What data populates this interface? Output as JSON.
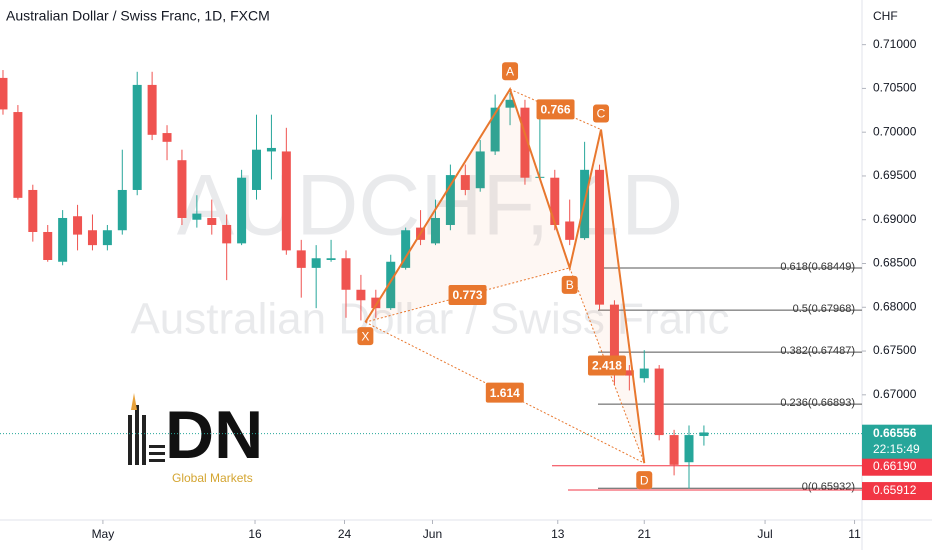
{
  "chart_data": {
    "type": "candlestick",
    "title": "Australian Dollar / Swiss Franc, 1D, FXCM",
    "watermark": "AUDCHF, 1D",
    "watermark_subtitle": "Australian Dollar / Swiss Franc",
    "y_axis_unit": "CHF",
    "up_color": "#26a69a",
    "down_color": "#ef5350",
    "categories": [
      null,
      null,
      null,
      null,
      null,
      null,
      null,
      null,
      null,
      null,
      null,
      null,
      null,
      null,
      null,
      null,
      null,
      null,
      null,
      null,
      null,
      null,
      null,
      null,
      null,
      null,
      null,
      null,
      null,
      null,
      null,
      null,
      null,
      null,
      null,
      null,
      null,
      null,
      null,
      null,
      null,
      null,
      null,
      null,
      null,
      null,
      null,
      null
    ],
    "open": [
      0.7062,
      0.7023,
      0.6934,
      0.6886,
      0.6852,
      0.6904,
      0.6888,
      0.6871,
      0.6888,
      0.6934,
      0.7054,
      0.6999,
      0.6968,
      0.69,
      0.6902,
      0.6894,
      0.6873,
      0.6934,
      0.6978,
      0.6978,
      0.6865,
      0.6845,
      0.6854,
      0.6856,
      0.682,
      0.6811,
      0.6799,
      0.6845,
      0.6891,
      0.6873,
      0.6894,
      0.6951,
      0.6936,
      0.6978,
      0.7028,
      0.7028,
      0.6948,
      0.6948,
      0.6898,
      0.6879,
      0.6957,
      0.6803,
      0.6728,
      0.6719,
      0.673,
      0.6654,
      0.6623,
      0.6653
    ],
    "high": [
      0.7071,
      0.7031,
      0.694,
      0.6894,
      0.6911,
      0.6917,
      0.6906,
      0.6894,
      0.698,
      0.7069,
      0.7069,
      0.7008,
      0.698,
      0.6928,
      0.6923,
      0.6906,
      0.6957,
      0.702,
      0.702,
      0.7005,
      0.6877,
      0.6871,
      0.6877,
      0.6865,
      0.6837,
      0.682,
      0.686,
      0.6891,
      0.6911,
      0.6923,
      0.6963,
      0.6963,
      0.6991,
      0.7043,
      0.7045,
      0.7037,
      0.7028,
      0.6957,
      0.6923,
      0.6989,
      0.6963,
      0.6808,
      0.6734,
      0.6751,
      0.6734,
      0.666,
      0.6665,
      0.6665
    ],
    "low": [
      0.702,
      0.6923,
      0.6875,
      0.6852,
      0.6848,
      0.6865,
      0.6865,
      0.6865,
      0.6883,
      0.6928,
      0.6991,
      0.6968,
      0.6894,
      0.6891,
      0.6883,
      0.6831,
      0.6871,
      0.6923,
      0.6946,
      0.686,
      0.6811,
      0.6799,
      0.6852,
      0.6788,
      0.6785,
      0.6788,
      0.6797,
      0.6843,
      0.6871,
      0.6871,
      0.6888,
      0.6928,
      0.6932,
      0.6974,
      0.7008,
      0.694,
      0.6946,
      0.6888,
      0.6871,
      0.6877,
      0.6797,
      0.6711,
      0.6705,
      0.6714,
      0.6648,
      0.6608,
      0.6593,
      0.6642
    ],
    "close": [
      0.7026,
      0.6925,
      0.6886,
      0.6854,
      0.6902,
      0.6883,
      0.6871,
      0.6888,
      0.6934,
      0.7054,
      0.6997,
      0.6989,
      0.6902,
      0.6907,
      0.6894,
      0.6873,
      0.6948,
      0.698,
      0.6982,
      0.6865,
      0.6845,
      0.6856,
      0.6856,
      0.682,
      0.6808,
      0.6799,
      0.6852,
      0.6888,
      0.6877,
      0.6902,
      0.6951,
      0.6934,
      0.6978,
      0.7028,
      0.7037,
      0.6948,
      0.6949,
      0.6894,
      0.6877,
      0.6957,
      0.6803,
      0.6728,
      0.6722,
      0.673,
      0.6654,
      0.662,
      0.6654,
      0.6657
    ],
    "xlim": [
      -0.2,
      57.6
    ],
    "xticks": [
      {
        "value": 6.7,
        "label": "May"
      },
      {
        "value": 16.9,
        "label": "16"
      },
      {
        "value": 22.9,
        "label": "24"
      },
      {
        "value": 28.8,
        "label": "Jun"
      },
      {
        "value": 37.2,
        "label": "13"
      },
      {
        "value": 43.0,
        "label": "21"
      },
      {
        "value": 51.1,
        "label": "Jul"
      },
      {
        "value": 57.1,
        "label": "11"
      }
    ],
    "ylim": [
      0.6557,
      0.7151
    ],
    "yticks": [
      {
        "value": 0.71,
        "label": "0.71000"
      },
      {
        "value": 0.705,
        "label": "0.70500"
      },
      {
        "value": 0.7,
        "label": "0.70000"
      },
      {
        "value": 0.695,
        "label": "0.69500"
      },
      {
        "value": 0.69,
        "label": "0.69000"
      },
      {
        "value": 0.685,
        "label": "0.68500"
      },
      {
        "value": 0.68,
        "label": "0.68000"
      },
      {
        "value": 0.675,
        "label": "0.67500"
      },
      {
        "value": 0.67,
        "label": "0.67000"
      }
    ],
    "pattern_color": "#e8772e",
    "pattern_points": [
      {
        "label": "X",
        "index": 24.3,
        "price": 0.6783
      },
      {
        "label": "A",
        "index": 34.0,
        "price": 0.7049
      },
      {
        "label": "B",
        "index": 38.0,
        "price": 0.6845
      },
      {
        "label": "C",
        "index": 40.1,
        "price": 0.7003
      },
      {
        "label": "D",
        "index": 43.0,
        "price": 0.6622
      }
    ],
    "pattern_ratios": [
      0.766,
      0.773,
      1.614,
      2.418
    ],
    "fib_levels": [
      {
        "value": 0.68449,
        "label": "0.618(0.68449)"
      },
      {
        "value": 0.67968,
        "label": "0.5(0.67968)"
      },
      {
        "value": 0.67487,
        "label": "0.382(0.67487)"
      },
      {
        "value": 0.66893,
        "label": "0.236(0.66893)"
      },
      {
        "value": 0.65932,
        "label": "0(0.65932)"
      }
    ],
    "price_lines": [
      {
        "value": 0.6619,
        "label": "0.66190",
        "color": "#f23645"
      },
      {
        "value": 0.65912,
        "label": "0.65912",
        "color": "#f23645"
      }
    ],
    "last_price": {
      "value": 0.66556,
      "label": "0.66556",
      "countdown": "22:15:49",
      "color": "#26a69a"
    }
  },
  "logo": {
    "text": "DN",
    "subtitle": "Global Markets"
  }
}
